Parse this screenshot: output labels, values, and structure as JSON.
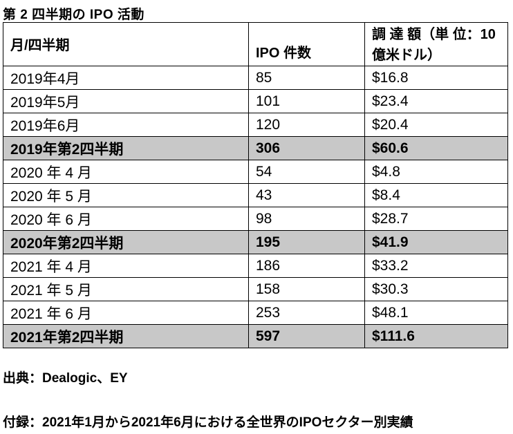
{
  "title": "第 2 四半期の IPO 活動",
  "table": {
    "headers": [
      "月/四半期",
      "IPO 件数",
      "調 達 額（単 位：10 億米ドル）"
    ],
    "rows": [
      {
        "period": "2019年4月",
        "count": "85",
        "amount": "$16.8",
        "total": false
      },
      {
        "period": "2019年5月",
        "count": "101",
        "amount": "$23.4",
        "total": false
      },
      {
        "period": "2019年6月",
        "count": "120",
        "amount": "$20.4",
        "total": false
      },
      {
        "period": "2019年第2四半期",
        "count": "306",
        "amount": "$60.6",
        "total": true
      },
      {
        "period": "2020 年 4 月",
        "count": "54",
        "amount": "$4.8",
        "total": false
      },
      {
        "period": "2020 年 5 月",
        "count": "43",
        "amount": "$8.4",
        "total": false
      },
      {
        "period": "2020 年 6 月",
        "count": "98",
        "amount": "$28.7",
        "total": false
      },
      {
        "period": "2020年第2四半期",
        "count": "195",
        "amount": "$41.9",
        "total": true
      },
      {
        "period": "2021 年 4 月",
        "count": "186",
        "amount": "$33.2",
        "total": false
      },
      {
        "period": "2021 年 5 月",
        "count": "158",
        "amount": "$30.3",
        "total": false
      },
      {
        "period": "2021 年 6 月",
        "count": "253",
        "amount": "$48.1",
        "total": false
      },
      {
        "period": "2021年第2四半期",
        "count": "597",
        "amount": "$111.6",
        "total": true
      }
    ]
  },
  "source": "出典：Dealogic、EY",
  "appendix": "付録：2021年1月から2021年6月における全世界のIPOセクター別実績",
  "colors": {
    "total_row_bg": "#c8c8c8",
    "border": "#000000"
  }
}
